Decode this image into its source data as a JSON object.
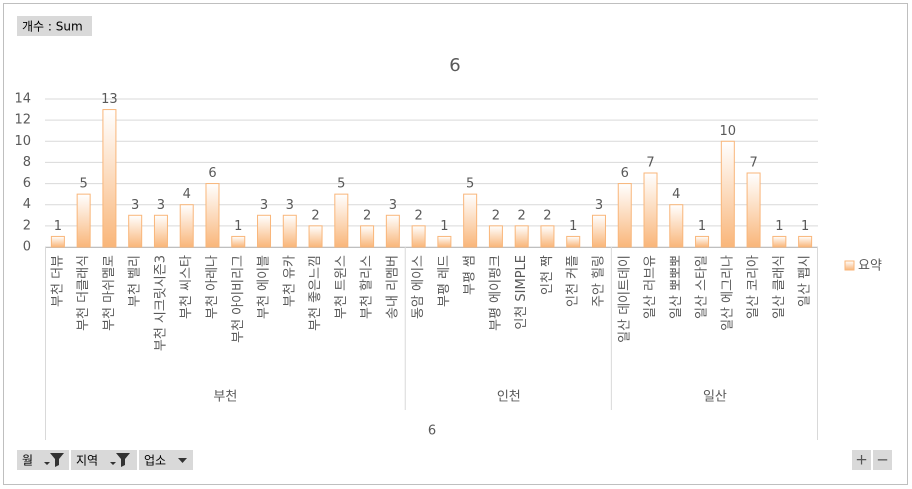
{
  "controls": {
    "value_field": "개수 : Sum",
    "filters": [
      "월",
      "지역",
      "업소"
    ],
    "zoom": [
      "+",
      "−"
    ]
  },
  "chart_data": {
    "type": "bar",
    "title": "6",
    "x_label": "6",
    "groups": [
      {
        "name": "부천",
        "categories": [
          "부천 더뷰",
          "부천 더클래식",
          "부천 마쉬멜로",
          "부천 벨리",
          "부천 시크릿시즌3",
          "부천 씨스타",
          "부천 아레나",
          "부천 아이비리그",
          "부천 에이블",
          "부천 유카",
          "부천 좋은느낌",
          "부천 트윈스",
          "부천 할리스",
          "송내 리멤버"
        ]
      },
      {
        "name": "인천",
        "categories": [
          "동암 에이스",
          "부평 레드",
          "부평 썸",
          "부평 에이펑크",
          "인천 SIMPLE",
          "인천 짝",
          "인천 커플",
          "주안 힐링"
        ]
      },
      {
        "name": "일산",
        "categories": [
          "일산 데이트데이",
          "일산 러브유",
          "일산 뽀뽀뽀",
          "일산 스타일",
          "일산 에그리나",
          "일산 코리아",
          "일산 클래식",
          "일산 펩시"
        ]
      }
    ],
    "series": [
      {
        "name": "요약",
        "color": "#f9b67a",
        "values": [
          1,
          5,
          13,
          3,
          3,
          4,
          6,
          1,
          3,
          3,
          2,
          5,
          2,
          3,
          2,
          1,
          5,
          2,
          2,
          2,
          1,
          3,
          6,
          7,
          4,
          1,
          10,
          7,
          1,
          1
        ]
      }
    ],
    "ylim": [
      0,
      14
    ],
    "yticks": [
      0,
      2,
      4,
      6,
      8,
      10,
      12,
      14
    ],
    "grid": true,
    "legend": "right"
  }
}
